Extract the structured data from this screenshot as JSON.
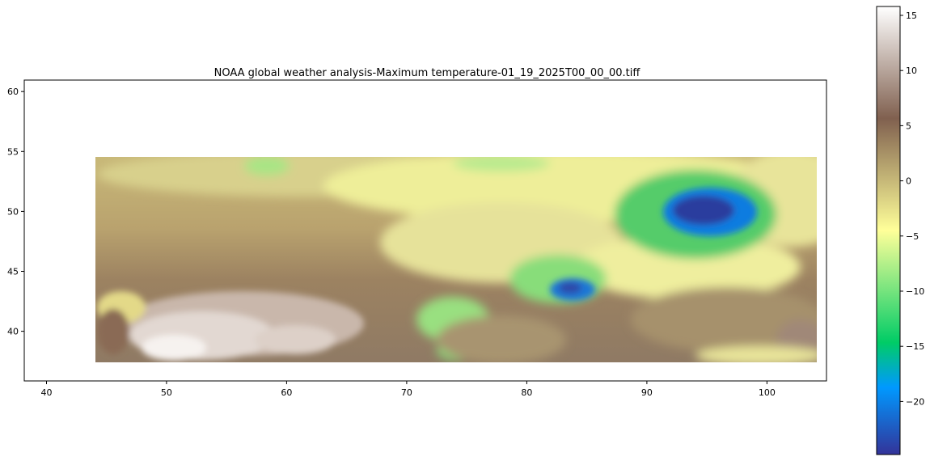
{
  "map": {
    "title": "NOAA global weather analysis-Maximum temperature-01_19_2025T00_00_00.tiff",
    "x_axis": {
      "range": [
        38.4,
        105.2
      ],
      "ticks": [
        "40",
        "50",
        "60",
        "70",
        "80",
        "90",
        "100"
      ],
      "tick_values": [
        40,
        50,
        60,
        70,
        80,
        90,
        100
      ]
    },
    "y_axis": {
      "range": [
        35.8,
        60.9
      ],
      "ticks": [
        "40",
        "45",
        "50",
        "55",
        "60"
      ],
      "tick_values": [
        40,
        45,
        50,
        55,
        60
      ]
    },
    "raster_extent": {
      "lon": [
        44.2,
        104.3
      ],
      "lat": [
        37.4,
        54.4
      ]
    },
    "colormap": "terrain",
    "colorbar": {
      "range": [
        -24.8,
        15.8
      ],
      "ticks": [
        "15",
        "10",
        "5",
        "0",
        "−5",
        "−10",
        "−15",
        "−20"
      ],
      "tick_values": [
        15,
        10,
        5,
        0,
        -5,
        -10,
        -15,
        -20
      ]
    }
  }
}
